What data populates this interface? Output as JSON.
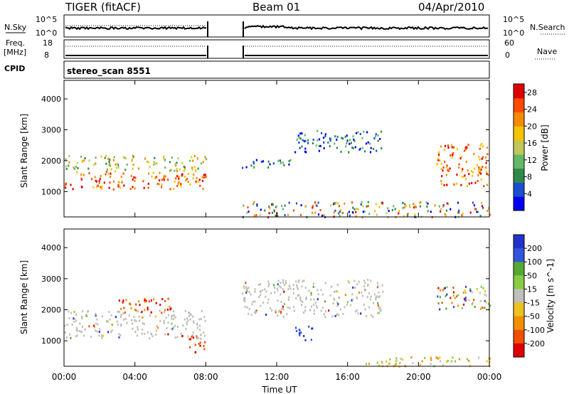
{
  "header": {
    "title": "TIGER (fitACF)",
    "beam": "Beam 01",
    "date": "04/Apr/2010"
  },
  "scan_label": "stereo_scan 8551",
  "strip_labels": {
    "nsky": "N.Sky",
    "nsky_tick_top": "10^5",
    "nsky_tick_bottom": "10^0",
    "nsearch": "N.Search",
    "freq_label_1": "Freq.",
    "freq_label_2": "[MHz]",
    "freq_tick_top": "18",
    "freq_tick_bottom": "8",
    "nave": "Nave",
    "nave_tick_top": "60",
    "nave_tick_bottom": "0",
    "cpid": "CPID"
  },
  "colors": {
    "power": [
      "#0000ee",
      "#1a4fd0",
      "#2f8a4a",
      "#66b866",
      "#c0c85a",
      "#f5c400",
      "#f58a00",
      "#ff4a00",
      "#e00000"
    ],
    "velocity": [
      "#2233cc",
      "#3355dd",
      "#55aa33",
      "#88cc44",
      "#c0c0b8",
      "#f0c020",
      "#f09000",
      "#f05000",
      "#e00000"
    ]
  },
  "chart_data": [
    {
      "type": "heatmap",
      "title": "Power",
      "xlabel": "Time UT",
      "ylabel": "Slant Range [km]",
      "x_ticks": [
        "00:00",
        "04:00",
        "08:00",
        "12:00",
        "16:00",
        "20:00",
        "00:00"
      ],
      "xlim": [
        0,
        24
      ],
      "ylim": [
        180,
        4600
      ],
      "y_ticks": [
        1000,
        2000,
        3000,
        4000
      ],
      "colorbar": {
        "label": "Power [dB]",
        "ticks": [
          4,
          8,
          12,
          16,
          20,
          24,
          28
        ],
        "range": [
          0,
          30
        ]
      },
      "data_gap_hours": [
        8,
        10
      ],
      "echo_regions": [
        {
          "t": [
            0,
            8
          ],
          "range_km": [
            1100,
            1700
          ],
          "level": "high"
        },
        {
          "t": [
            0,
            8
          ],
          "range_km": [
            1700,
            2200
          ],
          "level": "mid"
        },
        {
          "t": [
            10,
            13
          ],
          "range_km": [
            1800,
            2100
          ],
          "level": "low"
        },
        {
          "t": [
            13,
            18
          ],
          "range_km": [
            2300,
            3000
          ],
          "level": "low"
        },
        {
          "t": [
            21,
            24
          ],
          "range_km": [
            1200,
            2600
          ],
          "level": "high"
        },
        {
          "t": [
            10,
            24
          ],
          "range_km": [
            200,
            700
          ],
          "level": "ground"
        }
      ]
    },
    {
      "type": "heatmap",
      "title": "Velocity",
      "xlabel": "Time UT",
      "ylabel": "Slant Range [km]",
      "x_ticks": [
        "00:00",
        "04:00",
        "08:00",
        "12:00",
        "16:00",
        "20:00",
        "00:00"
      ],
      "xlim": [
        0,
        24
      ],
      "ylim": [
        180,
        4600
      ],
      "y_ticks": [
        1000,
        2000,
        3000,
        4000
      ],
      "colorbar": {
        "label": "Velocity [m s^-1]",
        "ticks": [
          "200",
          "100",
          "50",
          "15",
          "-15",
          "-50",
          "-100",
          "-200"
        ]
      },
      "data_gap_hours": [
        8,
        10
      ],
      "echo_regions": [
        {
          "t": [
            0,
            8
          ],
          "range_km": [
            1100,
            2000
          ],
          "level": "ground-scatter"
        },
        {
          "t": [
            3,
            6
          ],
          "range_km": [
            1900,
            2400
          ],
          "level": "negative"
        },
        {
          "t": [
            7,
            8
          ],
          "range_km": [
            600,
            1200
          ],
          "level": "negative"
        },
        {
          "t": [
            13,
            14
          ],
          "range_km": [
            1000,
            1500
          ],
          "level": "positive"
        },
        {
          "t": [
            10,
            18
          ],
          "range_km": [
            1800,
            3000
          ],
          "level": "ground-scatter"
        },
        {
          "t": [
            17,
            24
          ],
          "range_km": [
            200,
            500
          ],
          "level": "negative-weak"
        },
        {
          "t": [
            21,
            24
          ],
          "range_km": [
            2000,
            2800
          ],
          "level": "mixed"
        }
      ]
    }
  ]
}
